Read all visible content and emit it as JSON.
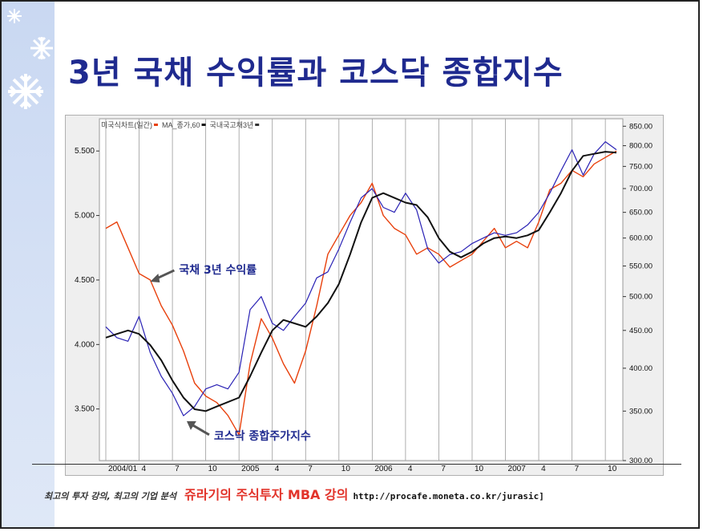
{
  "slide": {
    "title": "3년 국채 수익률과 코스닥 종합지수",
    "footer_left": "최고의 투자 강의, 최고의 기업 분석",
    "footer_brand": "쥬라기의 주식투자 MBA 강의",
    "footer_url": "http://procafe.moneta.co.kr/jurasic]"
  },
  "colors": {
    "title": "#1f2a8f",
    "bond": "#e8400c",
    "kosdaq": "#2a22b5",
    "ma": "#111111",
    "annotation": "#1f2a8f",
    "brand": "#e2342b"
  },
  "icons": [
    "snowflake-icon",
    "snowflake-icon",
    "snowflake-icon"
  ],
  "chart_data": {
    "type": "line",
    "legend": [
      "미국식차트(일간)",
      "MA_종가,60",
      "국내국고채3년"
    ],
    "annotations": [
      "국채 3년 수익률",
      "코스닥 종합주가지수"
    ],
    "x_tick_labels": [
      "2004/01",
      "4",
      "7",
      "10",
      "2005",
      "4",
      "7",
      "10",
      "2006",
      "4",
      "7",
      "10",
      "2007",
      "4",
      "7",
      "10"
    ],
    "left_axis": {
      "ticks": [
        "5.500",
        "5.000",
        "4.500",
        "4.000",
        "3.500"
      ],
      "ylim": [
        3.1,
        5.75
      ]
    },
    "right_axis": {
      "ticks": [
        "850.00",
        "800.00",
        "750.00",
        "700.00",
        "650.00",
        "600.00",
        "550.00",
        "500.00",
        "450.00",
        "400.00",
        "350.00",
        "300.00"
      ],
      "ylim": [
        300,
        870
      ],
      "scale": "log"
    },
    "x": [
      "2004-01",
      "2004-02",
      "2004-03",
      "2004-04",
      "2004-05",
      "2004-06",
      "2004-07",
      "2004-08",
      "2004-09",
      "2004-10",
      "2004-11",
      "2004-12",
      "2005-01",
      "2005-02",
      "2005-03",
      "2005-04",
      "2005-05",
      "2005-06",
      "2005-07",
      "2005-08",
      "2005-09",
      "2005-10",
      "2005-11",
      "2005-12",
      "2006-01",
      "2006-02",
      "2006-03",
      "2006-04",
      "2006-05",
      "2006-06",
      "2006-07",
      "2006-08",
      "2006-09",
      "2006-10",
      "2006-11",
      "2006-12",
      "2007-01",
      "2007-02",
      "2007-03",
      "2007-04",
      "2007-05",
      "2007-06",
      "2007-07",
      "2007-08",
      "2007-09",
      "2007-10",
      "2007-11"
    ],
    "series": [
      {
        "name": "국내국고채3년",
        "axis": "left",
        "values": [
          4.9,
          4.95,
          4.75,
          4.55,
          4.5,
          4.3,
          4.15,
          3.95,
          3.7,
          3.6,
          3.55,
          3.45,
          3.3,
          3.85,
          4.2,
          4.05,
          3.85,
          3.7,
          3.95,
          4.3,
          4.7,
          4.85,
          5.0,
          5.1,
          5.25,
          5.0,
          4.9,
          4.85,
          4.7,
          4.75,
          4.7,
          4.6,
          4.65,
          4.7,
          4.8,
          4.9,
          4.75,
          4.8,
          4.75,
          4.95,
          5.2,
          5.25,
          5.35,
          5.3,
          5.4,
          5.45,
          5.5
        ]
      },
      {
        "name": "코스닥 종합주가지수",
        "axis": "right",
        "values": [
          455,
          440,
          435,
          470,
          420,
          390,
          370,
          345,
          355,
          375,
          380,
          375,
          395,
          480,
          500,
          460,
          450,
          470,
          490,
          530,
          540,
          580,
          630,
          680,
          700,
          660,
          650,
          690,
          655,
          580,
          555,
          570,
          575,
          590,
          600,
          610,
          605,
          610,
          625,
          650,
          690,
          740,
          790,
          730,
          780,
          810,
          790
        ]
      },
      {
        "name": "MA_종가,60",
        "axis": "right",
        "values": [
          440,
          445,
          450,
          445,
          430,
          410,
          385,
          365,
          352,
          350,
          355,
          360,
          365,
          390,
          420,
          450,
          465,
          460,
          455,
          470,
          490,
          520,
          570,
          630,
          680,
          690,
          680,
          670,
          665,
          640,
          600,
          575,
          565,
          575,
          590,
          600,
          603,
          600,
          605,
          615,
          650,
          690,
          740,
          775,
          780,
          785,
          783
        ]
      }
    ]
  }
}
